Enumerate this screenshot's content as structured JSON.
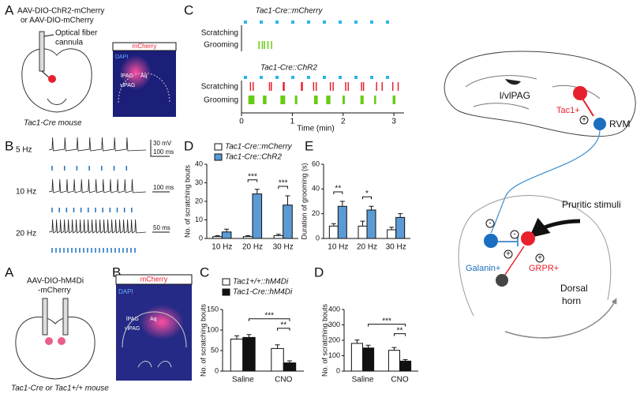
{
  "panel_labels": [
    "A",
    "B",
    "C",
    "D",
    "E",
    "A",
    "B",
    "C",
    "D"
  ],
  "top_a": {
    "virus": [
      "AAV-DIO-ChR2-mCherry",
      "or AAV-DIO-mCherry"
    ],
    "fiber": [
      "Optical fiber",
      "cannula"
    ],
    "mouse": "Tac1-Cre mouse"
  },
  "image_top": {
    "title": "mCherry",
    "stain": "DAPI",
    "regions": [
      "lPAG",
      "vlPAG",
      "Aq"
    ]
  },
  "traces": {
    "rows": [
      "5 Hz",
      "10 Hz",
      "20 Hz"
    ],
    "scales": [
      "30 mV",
      "100 ms",
      "100 ms",
      "50 ms"
    ]
  },
  "raster": {
    "groups": [
      "Tac1-Cre::mCherry",
      "Tac1-Cre::ChR2"
    ],
    "rows": [
      "Scratching",
      "Grooming"
    ],
    "xlim": [
      0,
      3.2
    ],
    "xticks": [
      0,
      1,
      2,
      3
    ],
    "xlabel": "Time (min)"
  },
  "diagram": {
    "region": "l/vlPAG",
    "cell": "Tac1+",
    "target": "RVM",
    "stimulus": "Pruritic stimuli",
    "inter": "Galanin+",
    "projection": "GRPR+",
    "horn": [
      "Dorsal",
      "horn"
    ],
    "signs": [
      "+",
      "-",
      "-",
      "+",
      "+"
    ]
  },
  "bottom_a": {
    "virus": [
      "AAV-DIO-hM4Di",
      "-mCherry"
    ],
    "mouse": "Tac1-Cre or Tac1+/+ mouse"
  },
  "image_bottom": {
    "title": "mCherry",
    "stain": "DAPI",
    "regions": [
      "lPAG",
      "vlPAG",
      "Aq"
    ]
  },
  "chart_data": [
    {
      "type": "bar",
      "ylabel": "No. of scratching bouts",
      "categories": [
        "10 Hz",
        "20 Hz",
        "30 Hz"
      ],
      "ylim": [
        0,
        40
      ],
      "yticks": [
        0,
        10,
        20,
        30,
        40
      ],
      "series": [
        {
          "name": "Tac1-Cre::mCherry",
          "color": "#ffffff",
          "values": [
            1,
            1,
            1.5
          ],
          "errors": [
            0.5,
            0.5,
            0.8
          ]
        },
        {
          "name": "Tac1-Cre::ChR2",
          "color": "#5b9bd5",
          "values": [
            3.5,
            24,
            18
          ],
          "errors": [
            1.5,
            2.5,
            5
          ]
        }
      ],
      "annotations": [
        null,
        "***",
        "***"
      ]
    },
    {
      "type": "bar",
      "ylabel": "Duration of grooming (s)",
      "categories": [
        "10 Hz",
        "20 Hz",
        "30 Hz"
      ],
      "ylim": [
        0,
        60
      ],
      "yticks": [
        0,
        20,
        40,
        60
      ],
      "series": [
        {
          "color": "#ffffff",
          "values": [
            10,
            10,
            7
          ],
          "errors": [
            2,
            4,
            2
          ]
        },
        {
          "color": "#5b9bd5",
          "values": [
            26,
            23,
            17
          ],
          "errors": [
            4,
            3,
            3
          ]
        }
      ],
      "annotations": [
        "**",
        "*",
        null
      ]
    },
    {
      "type": "bar",
      "ylabel": "No. of scratching bouts",
      "categories": [
        "Saline",
        "CNO"
      ],
      "ylim": [
        0,
        150
      ],
      "yticks": [
        0,
        50,
        100,
        150
      ],
      "series": [
        {
          "name": "Tac1+/+::hM4Di",
          "color": "#ffffff",
          "values": [
            78,
            55
          ],
          "errors": [
            8,
            9
          ]
        },
        {
          "name": "Tac1-Cre::hM4Di",
          "color": "#111111",
          "values": [
            82,
            20
          ],
          "errors": [
            7,
            5
          ]
        }
      ],
      "annotations": [
        "***",
        "**"
      ]
    },
    {
      "type": "bar",
      "ylabel": "No. of scratching bouts",
      "categories": [
        "Saline",
        "CNO"
      ],
      "ylim": [
        0,
        400
      ],
      "yticks": [
        0,
        100,
        200,
        300,
        400
      ],
      "series": [
        {
          "color": "#ffffff",
          "values": [
            180,
            135
          ],
          "errors": [
            22,
            18
          ]
        },
        {
          "color": "#111111",
          "values": [
            150,
            65
          ],
          "errors": [
            18,
            10
          ]
        }
      ],
      "annotations": [
        "***",
        "**"
      ]
    }
  ]
}
